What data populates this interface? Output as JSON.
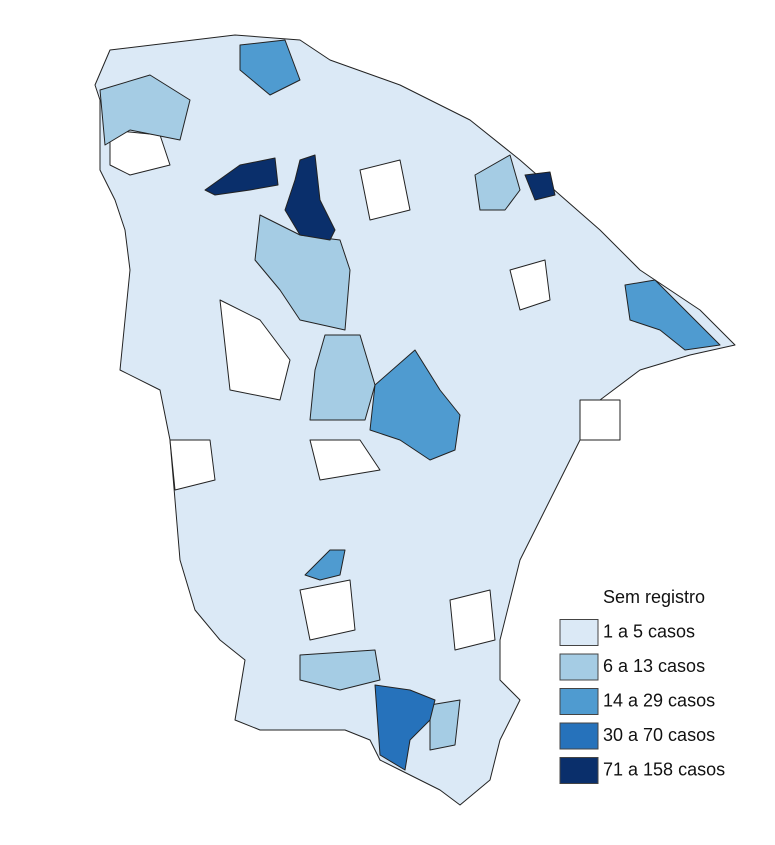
{
  "legend": {
    "items": [
      {
        "label": "Sem registro",
        "color": "#ffffff"
      },
      {
        "label": "1 a 5 casos",
        "color": "#dbe9f6"
      },
      {
        "label": "6 a 13 casos",
        "color": "#a5cce4"
      },
      {
        "label": "14 a 29 casos",
        "color": "#4f9bd0"
      },
      {
        "label": "30 a 70 casos",
        "color": "#2672bb"
      },
      {
        "label": "71 a 158 casos",
        "color": "#0a2f6b"
      }
    ]
  }
}
